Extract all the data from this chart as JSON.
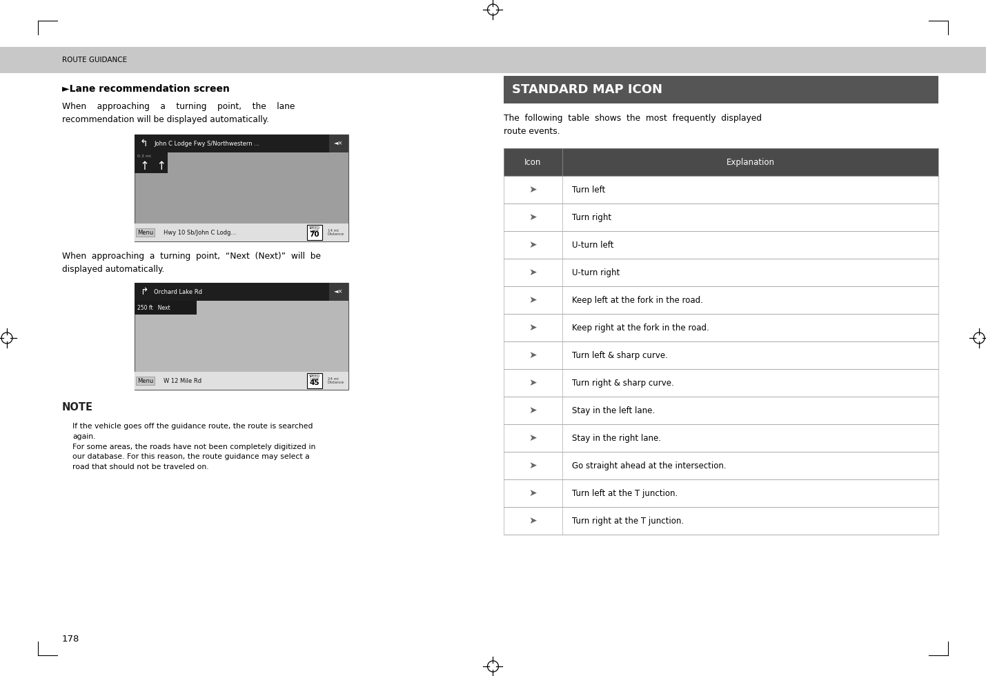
{
  "page_bg": "#ffffff",
  "header_bg": "#c8c8c8",
  "header_text": "ROUTE GUIDANCE",
  "header_text_color": "#000000",
  "page_number": "178",
  "section_title": "►Lane recommendation screen",
  "standard_map_icon_title": "STANDARD MAP ICON",
  "standard_map_intro": "The  following  table  shows  the  most  frequently  displayed\nroute events.",
  "table_header_bg": "#4a4a4a",
  "table_header_text_color": "#ffffff",
  "table_line_color": "#aaaaaa",
  "table_icon_col_header": "Icon",
  "table_explanation_col_header": "Explanation",
  "table_rows": [
    {
      "explanation": "Turn left"
    },
    {
      "explanation": "Turn right"
    },
    {
      "explanation": "U-turn left"
    },
    {
      "explanation": "U-turn right"
    },
    {
      "explanation": "Keep left at the fork in the road."
    },
    {
      "explanation": "Keep right at the fork in the road."
    },
    {
      "explanation": "Turn left & sharp curve."
    },
    {
      "explanation": "Turn right & sharp curve."
    },
    {
      "explanation": "Stay in the left lane."
    },
    {
      "explanation": "Stay in the right lane."
    },
    {
      "explanation": "Go straight ahead at the intersection."
    },
    {
      "explanation": "Turn left at the T junction."
    },
    {
      "explanation": "Turn right at the T junction."
    }
  ]
}
